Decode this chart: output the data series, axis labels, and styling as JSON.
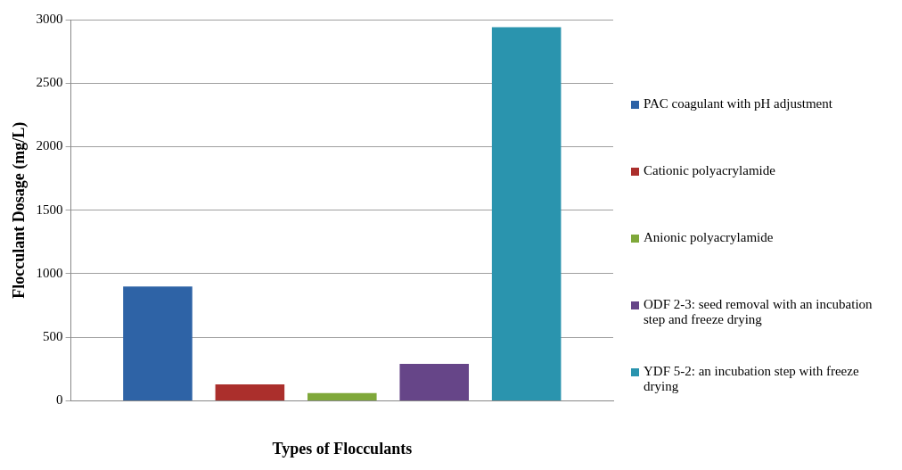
{
  "chart_data": {
    "type": "bar",
    "xlabel": "Types of Flocculants",
    "ylabel": "Flocculant Dosage (mg/L)",
    "categories": [
      null
    ],
    "series": [
      {
        "name": "PAC coagulant with pH adjustment",
        "color": "#2e63a6",
        "values": [
          900
        ]
      },
      {
        "name": "Cationic polyacrylamide",
        "color": "#ab2f2c",
        "values": [
          130
        ]
      },
      {
        "name": "Anionic polyacrylamide",
        "color": "#7fa83a",
        "values": [
          60
        ]
      },
      {
        "name": "ODF 2-3: seed removal with an incubation step and freeze drying",
        "color": "#664588",
        "values": [
          290
        ]
      },
      {
        "name": "YDF 5-2: an incubation step with freeze drying",
        "color": "#2a94ae",
        "values": [
          2940
        ]
      }
    ],
    "ylim": [
      0,
      3000
    ],
    "yticks": [
      0,
      500,
      1000,
      1500,
      2000,
      2500,
      3000
    ],
    "grid": "y",
    "legend": "right"
  }
}
